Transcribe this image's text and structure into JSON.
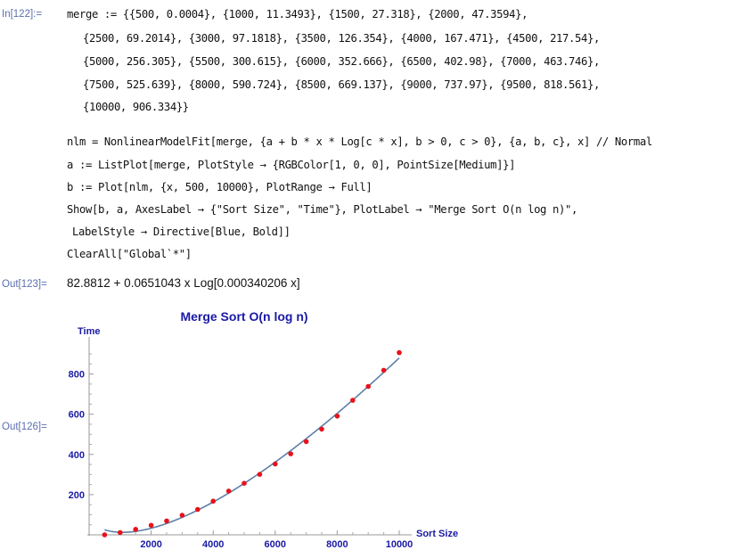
{
  "cells": {
    "in122_label": "In[122]:=",
    "in122_lines": [
      "merge := {{500, 0.0004}, {1000, 11.3493}, {1500, 27.318}, {2000, 47.3594},",
      "{2500, 69.2014}, {3000, 97.1818}, {3500, 126.354}, {4000, 167.471}, {4500, 217.54},",
      "{5000, 256.305}, {5500, 300.615}, {6000, 352.666}, {6500, 402.98}, {7000, 463.746},",
      "{7500, 525.639}, {8000, 590.724}, {8500, 669.137}, {9000, 737.97}, {9500, 818.561},",
      "{10000, 906.334}}"
    ],
    "code_lines": [
      "nlm = NonlinearModelFit[merge, {a + b * x * Log[c * x], b > 0, c > 0}, {a, b, c}, x] // Normal",
      "a := ListPlot[merge, PlotStyle → {RGBColor[1, 0, 0], PointSize[Medium]}]",
      "b := Plot[nlm, {x, 500, 10000}, PlotRange → Full]",
      "Show[b, a, AxesLabel → {\"Sort Size\", \"Time\"}, PlotLabel → \"Merge Sort O(n log n)\",",
      "LabelStyle → Directive[Blue, Bold]]",
      "ClearAll[\"Global`*\"]"
    ],
    "out123_label": "Out[123]=",
    "out123_value": "82.8812 + 0.0651043 x Log[0.000340206 x]",
    "out126_label": "Out[126]="
  },
  "colors": {
    "label": "#5b6fb0",
    "chart_text": "#1a1aa6",
    "fit_line": "#5e7fa8",
    "points": "#e8121a"
  },
  "chart_data": {
    "type": "scatter",
    "title": "Merge Sort O(n log n)",
    "xlabel": "Sort Size",
    "ylabel": "Time",
    "x_ticks": [
      2000,
      4000,
      6000,
      8000,
      10000
    ],
    "y_ticks": [
      200,
      400,
      600,
      800
    ],
    "xlim": [
      0,
      10000
    ],
    "ylim": [
      0,
      940
    ],
    "series": [
      {
        "kind": "points",
        "x": [
          500,
          1000,
          1500,
          2000,
          2500,
          3000,
          3500,
          4000,
          4500,
          5000,
          5500,
          6000,
          6500,
          7000,
          7500,
          8000,
          8500,
          9000,
          9500,
          10000
        ],
        "y": [
          0.0004,
          11.3493,
          27.318,
          47.3594,
          69.2014,
          97.1818,
          126.354,
          167.471,
          217.54,
          256.305,
          300.615,
          352.666,
          402.98,
          463.746,
          525.639,
          590.724,
          669.137,
          737.97,
          818.561,
          906.334
        ]
      },
      {
        "kind": "fit",
        "a": 82.8812,
        "b": 0.0651043,
        "c": 0.000340206,
        "x_range": [
          500,
          10000
        ]
      }
    ]
  }
}
